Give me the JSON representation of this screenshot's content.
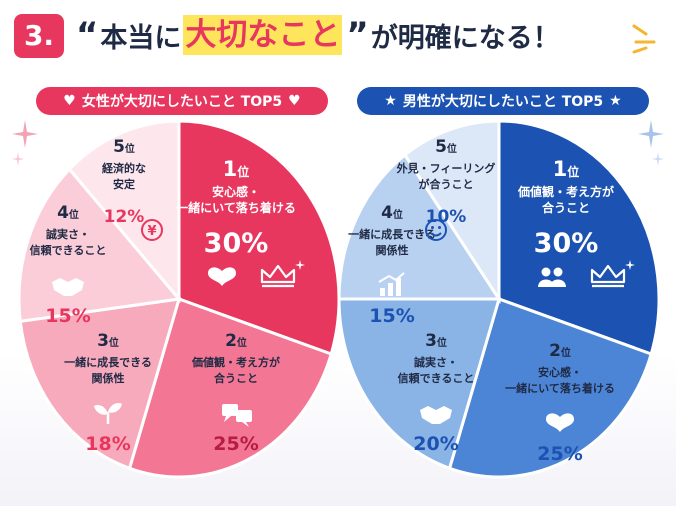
{
  "header": {
    "number": "3.",
    "quote_open": "“",
    "text_before": "本当に",
    "highlight": "大切なこと",
    "quote_close": "”",
    "text_after": "が明確になる！"
  },
  "colors": {
    "pink_accent": "#e8375f",
    "blue_accent": "#1c52b1",
    "highlight_yellow": "#ffe55c"
  },
  "chart_data": [
    {
      "type": "pie",
      "title": "女性が大切にしたいこと TOP5",
      "title_icon": "heart-icon",
      "slices": [
        {
          "rank": "1",
          "rank_suffix": "位",
          "label_lines": [
            "安心感・",
            "一緒にいて落ち着ける"
          ],
          "value": 30,
          "value_label": "30%",
          "icon": "heart-icon",
          "color": "#e8375f",
          "text_color": "#ffffff"
        },
        {
          "rank": "2",
          "rank_suffix": "位",
          "label_lines": [
            "価値観・考え方が",
            "合うこと"
          ],
          "value": 25,
          "value_label": "25%",
          "icon": "chat-bubbles-icon",
          "color": "#f37794",
          "text_color": "#1f2a44"
        },
        {
          "rank": "3",
          "rank_suffix": "位",
          "label_lines": [
            "一緒に成長できる",
            "関係性"
          ],
          "value": 18,
          "value_label": "18%",
          "icon": "sprout-icon",
          "color": "#f8aabd",
          "text_color": "#1f2a44"
        },
        {
          "rank": "4",
          "rank_suffix": "位",
          "label_lines": [
            "誠実さ・",
            "信頼できること"
          ],
          "value": 15,
          "value_label": "15%",
          "icon": "handshake-icon",
          "color": "#fbcdd8",
          "text_color": "#1f2a44"
        },
        {
          "rank": "5",
          "rank_suffix": "位",
          "label_lines": [
            "経済的な",
            "安定"
          ],
          "value": 12,
          "value_label": "12%",
          "icon": "yen-coin-icon",
          "color": "#fde6ec",
          "text_color": "#1f2a44"
        }
      ]
    },
    {
      "type": "pie",
      "title": "男性が大切にしたいこと TOP5",
      "title_icon": "star-icon",
      "slices": [
        {
          "rank": "1",
          "rank_suffix": "位",
          "label_lines": [
            "価値観・考え方が",
            "合うこと"
          ],
          "value": 30,
          "value_label": "30%",
          "icon": "people-icon",
          "color": "#1c52b1",
          "text_color": "#ffffff"
        },
        {
          "rank": "2",
          "rank_suffix": "位",
          "label_lines": [
            "安心感・",
            "一緒にいて落ち着ける"
          ],
          "value": 25,
          "value_label": "25%",
          "icon": "heart-icon",
          "color": "#4d85d6",
          "text_color": "#1f2a44"
        },
        {
          "rank": "3",
          "rank_suffix": "位",
          "label_lines": [
            "誠実さ・",
            "信頼できること"
          ],
          "value": 20,
          "value_label": "20%",
          "icon": "handshake-icon",
          "color": "#8ab3e6",
          "text_color": "#1f2a44"
        },
        {
          "rank": "4",
          "rank_suffix": "位",
          "label_lines": [
            "一緒に成長できる",
            "関係性"
          ],
          "value": 15,
          "value_label": "15%",
          "icon": "growth-chart-icon",
          "color": "#b8d1f1",
          "text_color": "#1f2a44"
        },
        {
          "rank": "5",
          "rank_suffix": "位",
          "label_lines": [
            "外見・フィーリング",
            "が合うこと"
          ],
          "value": 10,
          "value_label": "10%",
          "icon": "smile-icon",
          "color": "#dce8f8",
          "text_color": "#1f2a44"
        }
      ]
    }
  ]
}
